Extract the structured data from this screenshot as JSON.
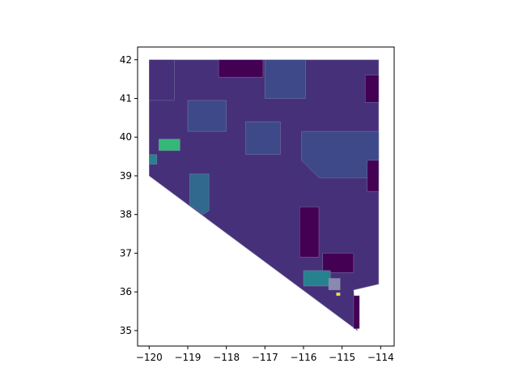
{
  "map": {
    "type": "choropleth",
    "region": "Nevada",
    "axes": {
      "x_ticks": [
        {
          "value": -120,
          "label": "−120"
        },
        {
          "value": -119,
          "label": "−119"
        },
        {
          "value": -118,
          "label": "−118"
        },
        {
          "value": -117,
          "label": "−117"
        },
        {
          "value": -116,
          "label": "−116"
        },
        {
          "value": -115,
          "label": "−115"
        },
        {
          "value": -114,
          "label": "−114"
        }
      ],
      "y_ticks": [
        {
          "value": 35,
          "label": "35"
        },
        {
          "value": 36,
          "label": "36"
        },
        {
          "value": 37,
          "label": "37"
        },
        {
          "value": 38,
          "label": "38"
        },
        {
          "value": 39,
          "label": "39"
        },
        {
          "value": 40,
          "label": "40"
        },
        {
          "value": 41,
          "label": "41"
        },
        {
          "value": 42,
          "label": "42"
        }
      ],
      "xlim": [
        -120.3,
        -113.65
      ],
      "ylim": [
        34.6,
        42.33
      ],
      "grid": false
    },
    "colors": {
      "dark_purple": "#440154",
      "purple": "#46307a",
      "indigo": "#3e4989",
      "blue": "#31688e",
      "teal": "#26828e",
      "green": "#35b779",
      "yellow": "#fde725",
      "boundary": "#8a8ab0"
    },
    "regions": [
      {
        "name": "state-base",
        "color": "purple",
        "poly": [
          [
            -120,
            42
          ],
          [
            -114.05,
            42
          ],
          [
            -114.05,
            36.2
          ],
          [
            -114.7,
            36.05
          ],
          [
            -114.65,
            35.2
          ],
          [
            -114.6,
            35.0
          ],
          [
            -120,
            39.0
          ]
        ]
      },
      {
        "name": "nw-tract",
        "color": "purple",
        "poly": [
          [
            -120,
            42
          ],
          [
            -119.35,
            42
          ],
          [
            -119.35,
            40.95
          ],
          [
            -120,
            40.95
          ]
        ]
      },
      {
        "name": "north-central-tract",
        "color": "dark_purple",
        "poly": [
          [
            -118.2,
            42
          ],
          [
            -117.05,
            42
          ],
          [
            -117.05,
            41.55
          ],
          [
            -118.2,
            41.55
          ]
        ]
      },
      {
        "name": "elko-north-tract",
        "color": "indigo",
        "poly": [
          [
            -117.0,
            42
          ],
          [
            -115.95,
            42
          ],
          [
            -115.95,
            41.0
          ],
          [
            -117.0,
            41.0
          ]
        ]
      },
      {
        "name": "ne-corner-tract",
        "color": "dark_purple",
        "poly": [
          [
            -114.4,
            41.6
          ],
          [
            -114.05,
            41.6
          ],
          [
            -114.05,
            40.9
          ],
          [
            -114.4,
            40.9
          ]
        ]
      },
      {
        "name": "pershing-tract",
        "color": "indigo",
        "poly": [
          [
            -119.0,
            40.95
          ],
          [
            -118.0,
            40.95
          ],
          [
            -118.0,
            40.15
          ],
          [
            -119.0,
            40.15
          ]
        ]
      },
      {
        "name": "lander-tract",
        "color": "indigo",
        "poly": [
          [
            -117.5,
            40.4
          ],
          [
            -116.6,
            40.4
          ],
          [
            -116.6,
            39.55
          ],
          [
            -117.5,
            39.55
          ]
        ]
      },
      {
        "name": "white-pine-tract",
        "color": "indigo",
        "poly": [
          [
            -116.05,
            40.15
          ],
          [
            -114.05,
            40.15
          ],
          [
            -114.05,
            38.95
          ],
          [
            -115.6,
            38.95
          ],
          [
            -116.05,
            39.4
          ]
        ]
      },
      {
        "name": "churchill-tract",
        "color": "blue",
        "poly": [
          [
            -118.95,
            39.05
          ],
          [
            -118.45,
            39.05
          ],
          [
            -118.45,
            38.1
          ],
          [
            -118.6,
            38.0
          ],
          [
            -118.95,
            38.25
          ]
        ]
      },
      {
        "name": "reno-green-tract",
        "color": "green",
        "poly": [
          [
            -119.75,
            39.95
          ],
          [
            -119.2,
            39.95
          ],
          [
            -119.2,
            39.65
          ],
          [
            -119.75,
            39.65
          ]
        ]
      },
      {
        "name": "reno-teal-tract",
        "color": "teal",
        "poly": [
          [
            -120.0,
            39.55
          ],
          [
            -119.8,
            39.55
          ],
          [
            -119.8,
            39.3
          ],
          [
            -120.0,
            39.3
          ]
        ]
      },
      {
        "name": "nye-dark-tract",
        "color": "dark_purple",
        "poly": [
          [
            -116.1,
            38.2
          ],
          [
            -115.6,
            38.2
          ],
          [
            -115.6,
            36.9
          ],
          [
            -116.1,
            36.9
          ]
        ]
      },
      {
        "name": "lincoln-dark-tract",
        "color": "dark_purple",
        "poly": [
          [
            -115.5,
            37.0
          ],
          [
            -114.7,
            37.0
          ],
          [
            -114.7,
            36.5
          ],
          [
            -115.5,
            36.5
          ]
        ]
      },
      {
        "name": "clark-teal-tract",
        "color": "teal",
        "poly": [
          [
            -116.0,
            36.55
          ],
          [
            -115.3,
            36.55
          ],
          [
            -115.3,
            36.15
          ],
          [
            -116.0,
            36.15
          ]
        ]
      },
      {
        "name": "las-vegas-core",
        "color": "boundary",
        "poly": [
          [
            -115.35,
            36.35
          ],
          [
            -115.05,
            36.35
          ],
          [
            -115.05,
            36.05
          ],
          [
            -115.35,
            36.05
          ]
        ]
      },
      {
        "name": "yellow-tract",
        "color": "yellow",
        "poly": [
          [
            -115.15,
            35.98
          ],
          [
            -115.05,
            35.98
          ],
          [
            -115.05,
            35.9
          ],
          [
            -115.15,
            35.9
          ]
        ]
      },
      {
        "name": "east-border-tract",
        "color": "dark_purple",
        "poly": [
          [
            -114.35,
            39.4
          ],
          [
            -114.05,
            39.4
          ],
          [
            -114.05,
            38.6
          ],
          [
            -114.35,
            38.6
          ]
        ]
      },
      {
        "name": "se-dark-tract",
        "color": "dark_purple",
        "poly": [
          [
            -114.7,
            35.9
          ],
          [
            -114.55,
            35.9
          ],
          [
            -114.55,
            35.05
          ],
          [
            -114.7,
            35.05
          ]
        ]
      }
    ]
  }
}
